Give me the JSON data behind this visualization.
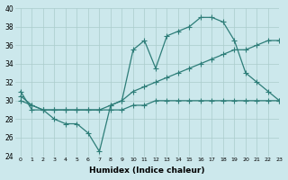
{
  "xlabel": "Humidex (Indice chaleur)",
  "ylabel": "",
  "background_color": "#cce8ec",
  "grid_color": "#aacccc",
  "line_color": "#2d7d78",
  "xlim": [
    -0.5,
    23
  ],
  "ylim": [
    24,
    40
  ],
  "yticks": [
    24,
    26,
    28,
    30,
    32,
    34,
    36,
    38,
    40
  ],
  "xticks": [
    0,
    1,
    2,
    3,
    4,
    5,
    6,
    7,
    8,
    9,
    10,
    11,
    12,
    13,
    14,
    15,
    16,
    17,
    18,
    19,
    20,
    21,
    22,
    23
  ],
  "series1_x": [
    0,
    1,
    2,
    3,
    4,
    5,
    6,
    7,
    8,
    9,
    10,
    11,
    12,
    13,
    14,
    15,
    16,
    17,
    18,
    19,
    20,
    21,
    22,
    23
  ],
  "series1_y": [
    30,
    29.5,
    29,
    29,
    29,
    29,
    29,
    29,
    29,
    29,
    29.5,
    29.5,
    30,
    30,
    30,
    30,
    30,
    30,
    30,
    30,
    30,
    30,
    30,
    30
  ],
  "series2_x": [
    0,
    1,
    2,
    3,
    4,
    5,
    6,
    7,
    8,
    9,
    10,
    11,
    12,
    13,
    14,
    15,
    16,
    17,
    18,
    19,
    20,
    21,
    22,
    23
  ],
  "series2_y": [
    30.5,
    29.5,
    29,
    29,
    29,
    29,
    29,
    29,
    29.5,
    30,
    31,
    31.5,
    32,
    32.5,
    33,
    33.5,
    34,
    34.5,
    35,
    35.5,
    35.5,
    36,
    36.5,
    36.5
  ],
  "series3_x": [
    0,
    1,
    2,
    3,
    4,
    5,
    6,
    7,
    8,
    9,
    10,
    11,
    12,
    13,
    14,
    15,
    16,
    17,
    18,
    19,
    20,
    21,
    22,
    23
  ],
  "series3_y": [
    31,
    29,
    29,
    28,
    27.5,
    27.5,
    26.5,
    24.5,
    29.5,
    30,
    35.5,
    36.5,
    33.5,
    37,
    37.5,
    38,
    39,
    39,
    38.5,
    36.5,
    33,
    32,
    31,
    30
  ]
}
